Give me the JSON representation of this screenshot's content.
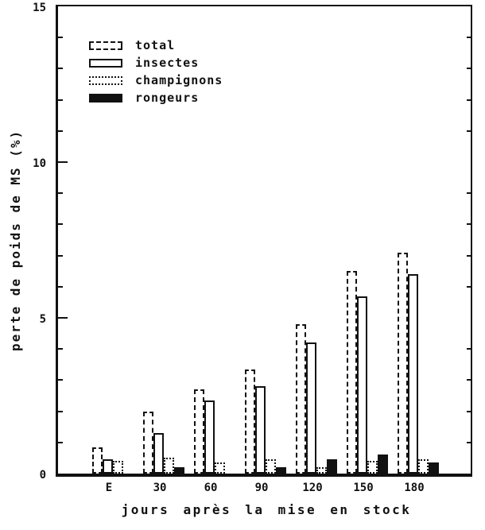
{
  "chart_data": {
    "type": "bar",
    "title": "",
    "xlabel": "jours après la mise en stock",
    "ylabel": "perte de poids de MS (%)",
    "categories": [
      "E",
      "30",
      "60",
      "90",
      "120",
      "150",
      "180"
    ],
    "series": [
      {
        "name": "total",
        "pattern": "dashed-outline",
        "values": [
          0.85,
          2.0,
          2.7,
          3.35,
          4.8,
          6.5,
          7.1
        ]
      },
      {
        "name": "insectes",
        "pattern": "solid-outline",
        "values": [
          0.45,
          1.3,
          2.35,
          2.8,
          4.2,
          5.7,
          6.4
        ]
      },
      {
        "name": "champignons",
        "pattern": "dotted-outline",
        "values": [
          0.4,
          0.5,
          0.35,
          0.45,
          0.2,
          0.4,
          0.45
        ]
      },
      {
        "name": "rongeurs",
        "pattern": "solid-black",
        "values": [
          0,
          0.2,
          0,
          0.2,
          0.45,
          0.6,
          0.35
        ]
      }
    ],
    "ylim": [
      0,
      15
    ],
    "y_ticks": [
      "0",
      "5",
      "10",
      "15"
    ],
    "y_minor_tick_step": 1,
    "grid": false,
    "legend_position": "upper-left",
    "ink_color": "#111111",
    "background_color": "#ffffff"
  }
}
